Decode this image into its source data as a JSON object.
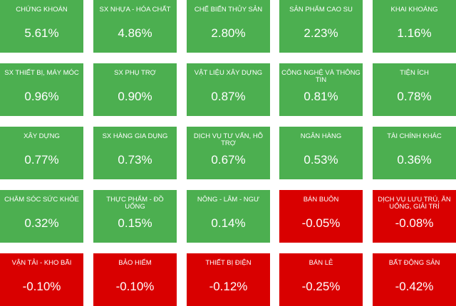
{
  "tiles": [
    {
      "name": "CHỨNG KHOÁN",
      "value": "5.61%"
    },
    {
      "name": "SX NHỰA - HÓA CHẤT",
      "value": "4.86%"
    },
    {
      "name": "CHẾ BIẾN THỦY SẢN",
      "value": "2.80%"
    },
    {
      "name": "SẢN PHẨM CAO SU",
      "value": "2.23%"
    },
    {
      "name": "KHAI KHOÁNG",
      "value": "1.16%"
    },
    {
      "name": "SX THIẾT BỊ, MÁY MÓC",
      "value": "0.96%"
    },
    {
      "name": "SX PHỤ TRỢ",
      "value": "0.90%"
    },
    {
      "name": "VẬT LIỆU XÂY DỰNG",
      "value": "0.87%"
    },
    {
      "name": "CÔNG NGHỆ VÀ THÔNG TIN",
      "value": "0.81%"
    },
    {
      "name": "TIỆN ÍCH",
      "value": "0.78%"
    },
    {
      "name": "XÂY DỰNG",
      "value": "0.77%"
    },
    {
      "name": "SX HÀNG GIA DỤNG",
      "value": "0.73%"
    },
    {
      "name": "DỊCH VỤ TƯ VẤN, HỖ TRỢ",
      "value": "0.67%"
    },
    {
      "name": "NGÂN HÀNG",
      "value": "0.53%"
    },
    {
      "name": "TÀI CHÍNH KHÁC",
      "value": "0.36%"
    },
    {
      "name": "CHĂM SÓC SỨC KHỎE",
      "value": "0.32%"
    },
    {
      "name": "THỰC PHẨM - ĐỒ UỐNG",
      "value": "0.15%"
    },
    {
      "name": "NÔNG - LÂM - NGƯ",
      "value": "0.14%"
    },
    {
      "name": "BÁN BUÔN",
      "value": "-0.05%"
    },
    {
      "name": "DỊCH VỤ LƯU TRÚ, ĂN UỐNG, GIẢI TRÍ",
      "value": "-0.08%"
    },
    {
      "name": "VẬN TẢI - KHO BÃI",
      "value": "-0.10%"
    },
    {
      "name": "BẢO HIỂM",
      "value": "-0.10%"
    },
    {
      "name": "THIẾT BỊ ĐIỆN",
      "value": "-0.12%"
    },
    {
      "name": "BÁN LẺ",
      "value": "-0.25%"
    },
    {
      "name": "BẤT ĐỘNG SẢN",
      "value": "-0.42%"
    }
  ]
}
